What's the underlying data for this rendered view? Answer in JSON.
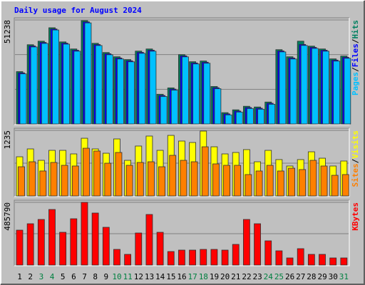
{
  "title": "Daily usage for August 2024",
  "legend_separator": "/",
  "chart_data": [
    {
      "type": "bar",
      "ylim": [
        0,
        51238
      ],
      "yticks": [
        51238
      ],
      "grid_lines": 3,
      "series": [
        {
          "name": "Pages",
          "color": "#00c0ff",
          "values": [
            24690,
            37940,
            39680,
            46300,
            39330,
            35850,
            49790,
            38640,
            34100,
            32010,
            30620,
            34800,
            35850,
            13540,
            16680,
            33060,
            29570,
            29920,
            17370,
            4480,
            5870,
            7610,
            7270,
            9710,
            35500,
            32010,
            38680,
            37240,
            35850,
            30970,
            32360
          ]
        },
        {
          "name": "Files",
          "color": "#0000ff",
          "values": [
            25190,
            38440,
            40180,
            46800,
            39830,
            36350,
            50290,
            39140,
            34600,
            32510,
            31120,
            35300,
            36350,
            14040,
            17180,
            33560,
            30070,
            30420,
            17870,
            4980,
            6370,
            8110,
            7770,
            10210,
            36000,
            32510,
            39180,
            37740,
            36350,
            31470,
            32860
          ]
        },
        {
          "name": "Hits",
          "color": "#008060",
          "values": [
            25790,
            39040,
            40780,
            47400,
            40430,
            36950,
            50890,
            39740,
            35200,
            33110,
            31720,
            35900,
            36950,
            14640,
            17780,
            34160,
            30670,
            31020,
            18470,
            5580,
            6970,
            8710,
            8370,
            10810,
            36600,
            33110,
            40780,
            38340,
            36950,
            32070,
            33460
          ]
        }
      ]
    },
    {
      "type": "bar",
      "ylim": [
        0,
        1235
      ],
      "yticks": [
        1235
      ],
      "grid_lines": 2,
      "series": [
        {
          "name": "Sites",
          "color": "#ff8000",
          "values": [
            550,
            644,
            470,
            631,
            577,
            564,
            899,
            846,
            617,
            819,
            577,
            631,
            644,
            550,
            765,
            671,
            644,
            926,
            604,
            577,
            577,
            403,
            470,
            577,
            470,
            523,
            497,
            671,
            564,
            389,
            403
          ]
        },
        {
          "name": "Visits",
          "color": "#ffff00",
          "values": [
            738,
            886,
            671,
            859,
            859,
            792,
            1087,
            886,
            805,
            1074,
            671,
            940,
            1128,
            859,
            1141,
            1034,
            1007,
            1222,
            926,
            792,
            819,
            873,
            644,
            859,
            685,
            564,
            685,
            832,
            711,
            564,
            658
          ]
        }
      ]
    },
    {
      "type": "bar",
      "ylim": [
        0,
        485790
      ],
      "yticks": [
        485790
      ],
      "grid_lines": 2,
      "categories": [
        "1",
        "2",
        "3",
        "4",
        "5",
        "6",
        "7",
        "8",
        "9",
        "10",
        "11",
        "12",
        "13",
        "14",
        "15",
        "16",
        "17",
        "18",
        "19",
        "20",
        "21",
        "22",
        "23",
        "24",
        "25",
        "26",
        "27",
        "28",
        "29",
        "30",
        "31"
      ],
      "category_colors": [
        "#000000",
        "#000000",
        "#008040",
        "#008040",
        "#000000",
        "#000000",
        "#000000",
        "#000000",
        "#000000",
        "#008040",
        "#008040",
        "#000000",
        "#000000",
        "#000000",
        "#000000",
        "#000000",
        "#008040",
        "#008040",
        "#000000",
        "#000000",
        "#000000",
        "#000000",
        "#000000",
        "#008040",
        "#008040",
        "#000000",
        "#000000",
        "#000000",
        "#000000",
        "#000000",
        "#008040"
      ],
      "series": [
        {
          "name": "KBytes",
          "color": "#ff0000",
          "values": [
            270500,
            320200,
            353300,
            430600,
            253900,
            358800,
            485790,
            403000,
            292600,
            121400,
            82800,
            248400,
            391900,
            253900,
            104900,
            115900,
            115900,
            121400,
            121400,
            115900,
            160100,
            353300,
            320200,
            187700,
            110400,
            55200,
            127000,
            82800,
            82800,
            55200,
            55200
          ]
        }
      ]
    }
  ]
}
